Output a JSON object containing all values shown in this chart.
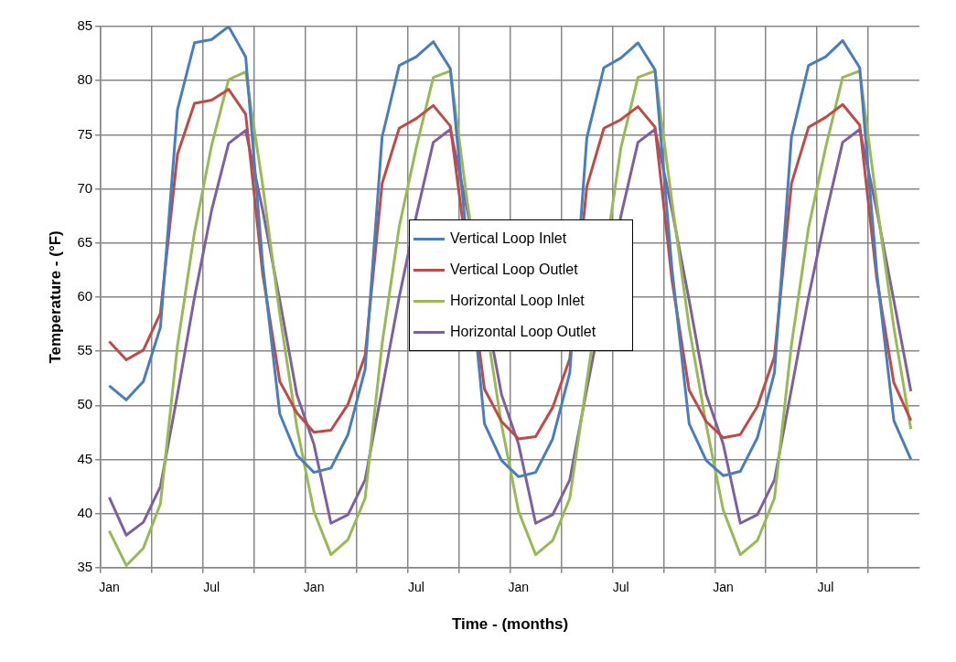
{
  "chart_data": {
    "type": "line",
    "xlabel": "Time - (months)",
    "ylabel": "Temperature - (°F)",
    "categories": [
      "Jan",
      null,
      null,
      null,
      null,
      null,
      "Jul",
      null,
      null,
      null,
      null,
      null,
      "Jan",
      null,
      null,
      null,
      null,
      null,
      "Jul",
      null,
      null,
      null,
      null,
      null,
      "Jan",
      null,
      null,
      null,
      null,
      null,
      "Jul",
      null,
      null,
      null,
      null,
      null,
      "Jan",
      null,
      null,
      null,
      null,
      null,
      "Jul",
      null,
      null,
      null,
      null,
      null
    ],
    "series": [
      {
        "name": "Vertical Loop Inlet",
        "color": "#4a7ebb",
        "values": [
          51.8,
          50.5,
          52.2,
          57.2,
          77.3,
          83.5,
          83.8,
          85.0,
          82.2,
          63,
          49.2,
          45.4,
          43.8,
          44.2,
          47.3,
          53.3,
          74.8,
          81.4,
          82.2,
          83.6,
          81.1,
          null,
          48.3,
          44.9,
          43.4,
          43.8,
          46.9,
          53.0,
          74.7,
          81.2,
          82.1,
          83.5,
          81.0,
          62.5,
          48.3,
          44.9,
          43.5,
          43.9,
          47.0,
          53.0,
          74.8,
          81.4,
          82.2,
          83.7,
          81.2,
          62.3,
          48.6,
          45.0
        ]
      },
      {
        "name": "Vertical Loop Outlet",
        "color": "#be4b48",
        "values": [
          55.9,
          54.2,
          55.1,
          58.5,
          73.2,
          77.9,
          78.2,
          79.2,
          76.9,
          62.1,
          52.2,
          49.3,
          47.5,
          47.7,
          50.1,
          54.6,
          70.5,
          75.6,
          76.5,
          77.7,
          75.8,
          null,
          51.5,
          48.5,
          46.9,
          47.1,
          49.8,
          54.3,
          70.2,
          75.6,
          76.4,
          77.6,
          75.7,
          61.5,
          51.4,
          48.5,
          47.0,
          47.3,
          49.9,
          54.5,
          70.5,
          75.7,
          76.6,
          77.8,
          75.9,
          61.7,
          52.1,
          48.6
        ]
      },
      {
        "name": "Horizontal Loop Inlet",
        "color": "#98b954",
        "values": [
          38.4,
          35.2,
          36.8,
          40.9,
          55.5,
          66.0,
          74.0,
          80.1,
          80.8,
          70.3,
          58.4,
          48.0,
          40.2,
          36.2,
          37.6,
          41.4,
          55.7,
          66.5,
          73.8,
          80.3,
          80.9,
          68.7,
          null,
          48.2,
          40.2,
          36.2,
          37.5,
          41.4,
          null,
          null,
          73.8,
          80.3,
          80.9,
          68.7,
          57.2,
          48.2,
          40.3,
          36.2,
          37.5,
          41.4,
          55.6,
          66.4,
          73.8,
          80.3,
          80.9,
          68.7,
          57.2,
          47.8
        ]
      },
      {
        "name": "Horizontal Loop Outlet",
        "color": "#7d60a0",
        "values": [
          41.5,
          38.0,
          39.2,
          42.5,
          51.0,
          60.0,
          68.0,
          74.2,
          75.4,
          68.0,
          59.7,
          51.0,
          46.4,
          39.1,
          39.9,
          43.1,
          51.5,
          60.0,
          67.5,
          74.3,
          75.5,
          68.0,
          null,
          51.0,
          46.4,
          39.1,
          39.9,
          43.1,
          51.5,
          null,
          67.5,
          74.3,
          75.5,
          68.0,
          59.7,
          51.0,
          46.4,
          39.1,
          39.9,
          43.1,
          51.5,
          60.0,
          67.5,
          74.3,
          75.5,
          68.0,
          59.7,
          51.3
        ]
      }
    ],
    "ylim": [
      35,
      85
    ],
    "yticks": [
      35,
      40,
      45,
      50,
      55,
      60,
      65,
      70,
      75,
      80,
      85
    ],
    "grid": true,
    "legend": "center",
    "marker": "none",
    "line_style": "solid"
  }
}
